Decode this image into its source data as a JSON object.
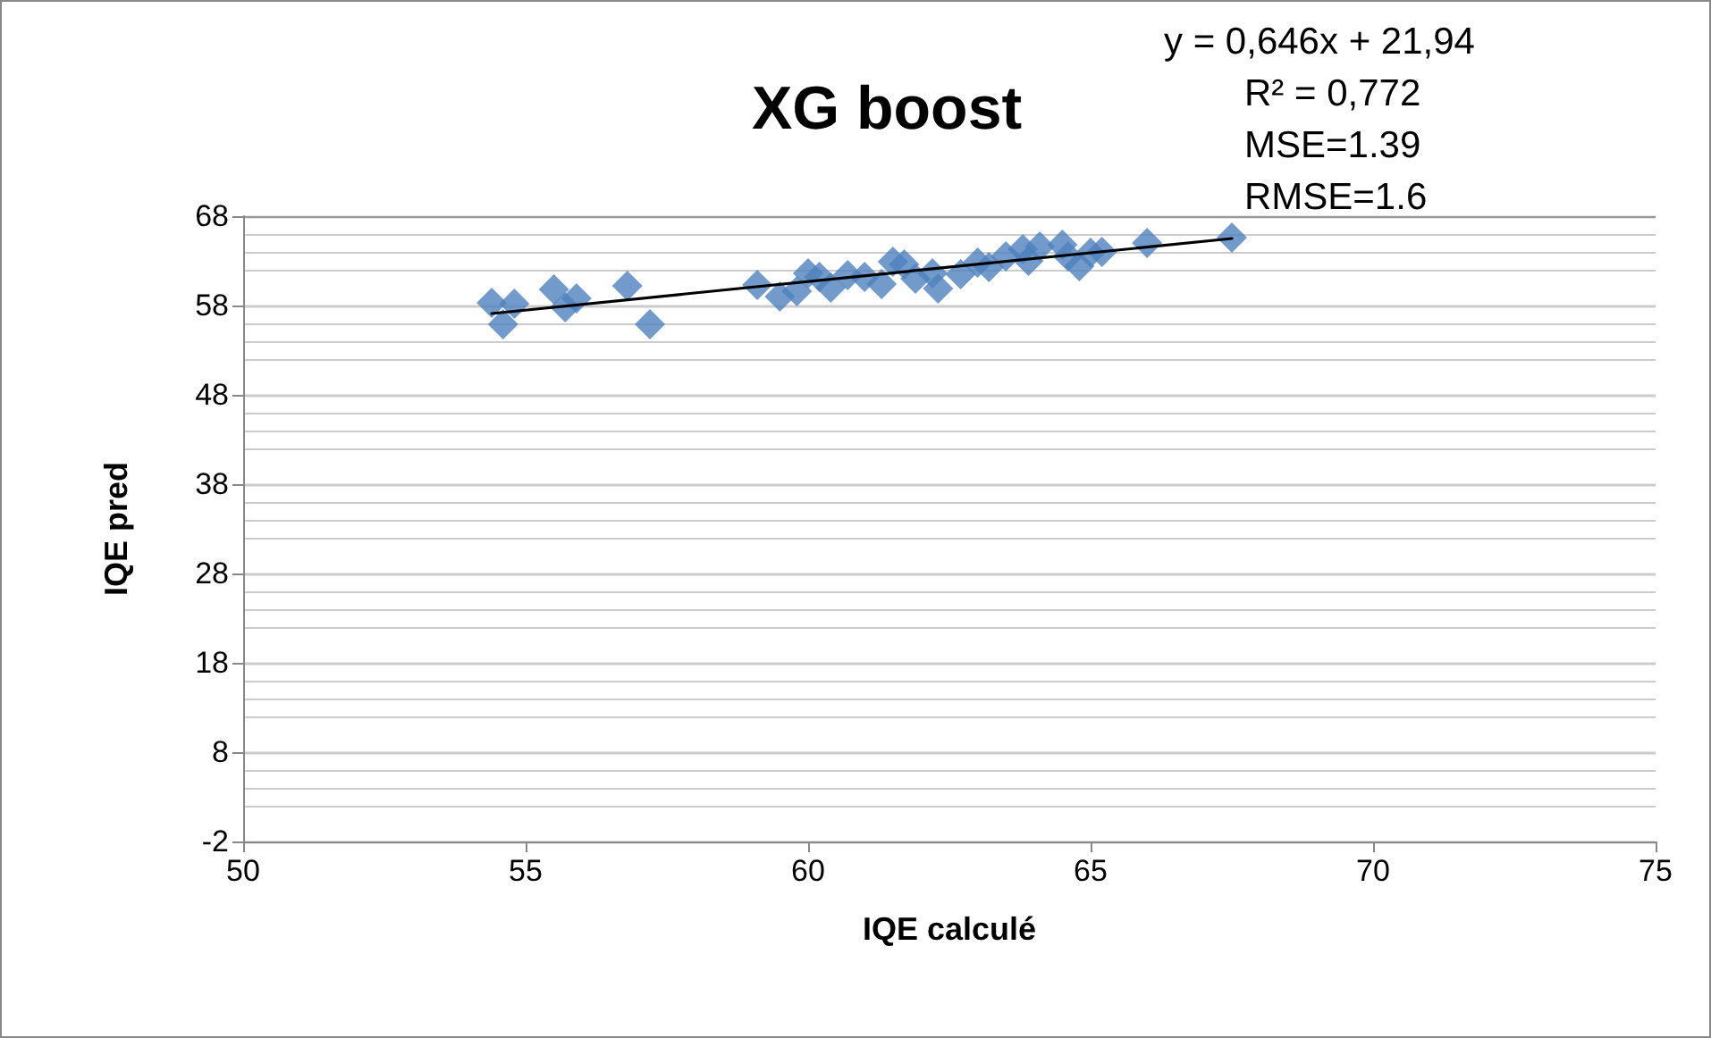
{
  "chart_data": {
    "type": "scatter",
    "title": "XG boost",
    "xlabel": "IQE calculé",
    "ylabel": "IQE pred",
    "xlim": [
      50,
      75
    ],
    "xticks": [
      50,
      55,
      60,
      65,
      70,
      75
    ],
    "ylim": [
      -2,
      68
    ],
    "yticks": [
      -2,
      8,
      18,
      28,
      38,
      48,
      58,
      68
    ],
    "grid": "y",
    "marker": "diamond",
    "annotations": [
      "y = 0,646x + 21,94",
      "R² = 0,772",
      "MSE=1.39",
      "RMSE=1.6"
    ],
    "series": [
      {
        "color": "#4f81bd",
        "x": [
          54.4,
          54.6,
          54.8,
          55.5,
          55.7,
          55.9,
          56.8,
          57.2,
          59.1,
          59.5,
          59.8,
          60.0,
          60.2,
          60.4,
          60.7,
          61.0,
          61.3,
          61.5,
          61.7,
          61.9,
          62.2,
          62.3,
          62.7,
          63.0,
          63.2,
          63.5,
          63.8,
          63.9,
          64.1,
          64.5,
          64.6,
          64.8,
          65.0,
          65.2,
          66.0,
          67.5
        ],
        "values": [
          58.3,
          55.9,
          58.2,
          59.8,
          57.8,
          58.8,
          60.2,
          55.9,
          60.3,
          59.0,
          59.6,
          61.6,
          61.2,
          60.0,
          61.4,
          61.2,
          60.4,
          62.9,
          62.6,
          61.0,
          61.6,
          59.9,
          61.5,
          62.8,
          62.3,
          63.5,
          64.3,
          63.0,
          64.6,
          64.8,
          63.5,
          62.4,
          63.9,
          64.0,
          65.0,
          65.6
        ]
      },
      {
        "type": "line",
        "color": "#000000",
        "marker": "none",
        "line_style": "solid",
        "x": [
          54.4,
          67.5
        ],
        "values": [
          57.1,
          65.5
        ]
      }
    ]
  }
}
